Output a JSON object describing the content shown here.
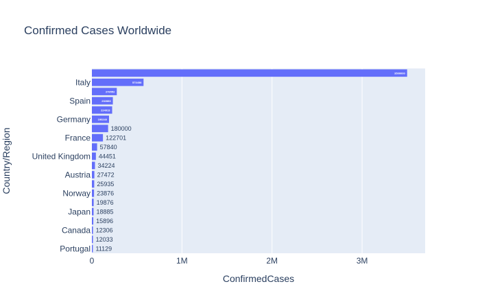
{
  "chart_data": {
    "type": "bar",
    "orientation": "horizontal",
    "title": "Confirmed Cases Worldwide",
    "xlabel": "ConfirmedCases",
    "ylabel": "Country/Region",
    "xlim": [
      0,
      3700000
    ],
    "x_ticks": [
      {
        "value": 0,
        "label": "0"
      },
      {
        "value": 1000000,
        "label": "1M"
      },
      {
        "value": 2000000,
        "label": "2M"
      },
      {
        "value": 3000000,
        "label": "3M"
      }
    ],
    "grid": true,
    "legend": "none",
    "colors": {
      "bar": "#636efa",
      "plot_bg": "#e5ecf6",
      "grid": "#ffffff",
      "title": "#2a3f5f",
      "text": "#2a3f5f",
      "label_inside": "#ffffff",
      "label_outside": "#2a3f5f"
    },
    "categories": [
      "",
      "Italy",
      "",
      "Spain",
      "",
      "Germany",
      "",
      "France",
      "",
      "United Kingdom",
      "",
      "Austria",
      "",
      "Norway",
      "",
      "Japan",
      "",
      "Canada",
      "",
      "Portugal"
    ],
    "values": [
      3500000,
      573458,
      276552,
      232883,
      224913,
      190240,
      180000,
      122701,
      57840,
      44451,
      34224,
      27472,
      25935,
      23876,
      19876,
      18885,
      15896,
      12306,
      12033,
      11129
    ],
    "value_labels": [
      "3500000",
      "573458",
      "276552",
      "232883",
      "224913",
      "190240",
      "180000",
      "122701",
      "57840",
      "44451",
      "34224",
      "27472",
      "25935",
      "23876",
      "19876",
      "18885",
      "15896",
      "12306",
      "12033",
      "11129"
    ]
  }
}
